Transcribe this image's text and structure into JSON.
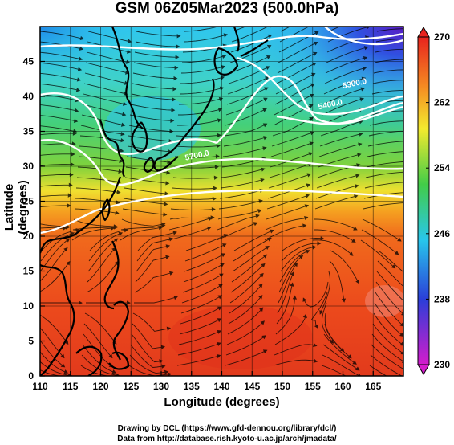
{
  "title": "GSM 06Z05Mar2023 (500.0hPa)",
  "axes": {
    "x_label": "Longitude (degrees)",
    "y_label": "Latitude (degrees)",
    "x_ticks": [
      110,
      115,
      120,
      125,
      130,
      135,
      140,
      145,
      150,
      155,
      160,
      165
    ],
    "y_ticks": [
      0,
      5,
      10,
      15,
      20,
      25,
      30,
      35,
      40,
      45
    ],
    "x_range": [
      110,
      170
    ],
    "y_range": [
      0,
      50
    ]
  },
  "colorbar": {
    "ticks": [
      "270",
      "262",
      "254",
      "246",
      "238",
      "230"
    ],
    "min": 230,
    "max": 270
  },
  "contour_labels": [
    {
      "text": "5300.0",
      "lon": 162,
      "lat": 41.5
    },
    {
      "text": "5400.0",
      "lon": 158,
      "lat": 38.5
    },
    {
      "text": "5700.0",
      "lon": 136,
      "lat": 31.2
    }
  ],
  "credits": {
    "line1": "Drawing by DCL (https://www.gfd-dennou.org/library/dcl/)",
    "line2": "Data from http://database.rish.kyoto-u.ac.jp/arch/jmadata/"
  }
}
